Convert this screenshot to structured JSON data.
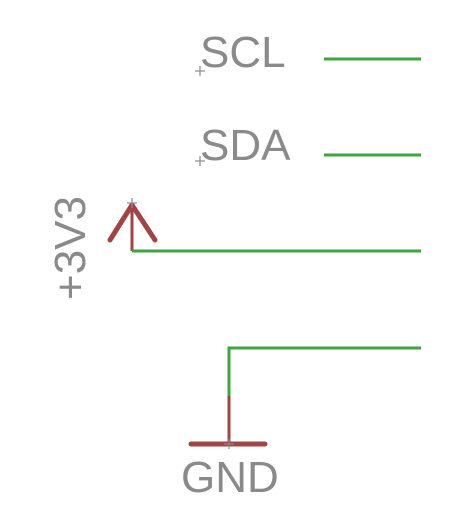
{
  "schematic": {
    "net_labels": {
      "scl": "SCL",
      "sda": "SDA"
    },
    "supplies": {
      "vcc": "+3V3",
      "ground": "GND"
    },
    "colors": {
      "wire": "#3fa33f",
      "symbol": "#a04545",
      "text": "#8a8a8a",
      "background": "#ffffff"
    }
  }
}
